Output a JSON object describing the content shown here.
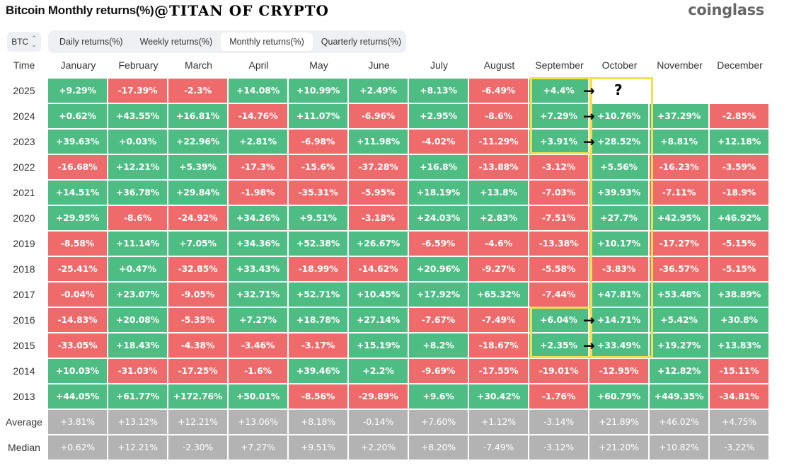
{
  "header": {
    "title": "Bitcoin Monthly returns(%)",
    "watermark": "@TITAN OF CRYPTO",
    "brand": "coinglass"
  },
  "controls": {
    "coin": "BTC",
    "tabs": [
      {
        "label": "Daily returns(%)",
        "active": false
      },
      {
        "label": "Weekly returns(%)",
        "active": false
      },
      {
        "label": "Monthly returns(%)",
        "active": true
      },
      {
        "label": "Quarterly returns(%)",
        "active": false
      }
    ]
  },
  "colors": {
    "positive": "#4dbd83",
    "negative": "#ef6a6a",
    "stat": "#b3b3b3",
    "highlight": "#f3e04a"
  },
  "table": {
    "time_header": "Time",
    "months": [
      "January",
      "February",
      "March",
      "April",
      "May",
      "June",
      "July",
      "August",
      "September",
      "October",
      "November",
      "December"
    ],
    "rows": [
      {
        "year": "2025",
        "values": [
          "+9.29%",
          "-17.39%",
          "-2.3%",
          "+14.08%",
          "+10.99%",
          "+2.49%",
          "+8.13%",
          "-6.49%",
          "+4.4%",
          "",
          "",
          ""
        ]
      },
      {
        "year": "2024",
        "values": [
          "+0.62%",
          "+43.55%",
          "+16.81%",
          "-14.76%",
          "+11.07%",
          "-6.96%",
          "+2.95%",
          "-8.6%",
          "+7.29%",
          "+10.76%",
          "+37.29%",
          "-2.85%"
        ]
      },
      {
        "year": "2023",
        "values": [
          "+39.63%",
          "+0.03%",
          "+22.96%",
          "+2.81%",
          "-6.98%",
          "+11.98%",
          "-4.02%",
          "-11.29%",
          "+3.91%",
          "+28.52%",
          "+8.81%",
          "+12.18%"
        ]
      },
      {
        "year": "2022",
        "values": [
          "-16.68%",
          "+12.21%",
          "+5.39%",
          "-17.3%",
          "-15.6%",
          "-37.28%",
          "+16.8%",
          "-13.88%",
          "-3.12%",
          "+5.56%",
          "-16.23%",
          "-3.59%"
        ]
      },
      {
        "year": "2021",
        "values": [
          "+14.51%",
          "+36.78%",
          "+29.84%",
          "-1.98%",
          "-35.31%",
          "-5.95%",
          "+18.19%",
          "+13.8%",
          "-7.03%",
          "+39.93%",
          "-7.11%",
          "-18.9%"
        ]
      },
      {
        "year": "2020",
        "values": [
          "+29.95%",
          "-8.6%",
          "-24.92%",
          "+34.26%",
          "+9.51%",
          "-3.18%",
          "+24.03%",
          "+2.83%",
          "-7.51%",
          "+27.7%",
          "+42.95%",
          "+46.92%"
        ]
      },
      {
        "year": "2019",
        "values": [
          "-8.58%",
          "+11.14%",
          "+7.05%",
          "+34.36%",
          "+52.38%",
          "+26.67%",
          "-6.59%",
          "-4.6%",
          "-13.38%",
          "+10.17%",
          "-17.27%",
          "-5.15%"
        ]
      },
      {
        "year": "2018",
        "values": [
          "-25.41%",
          "+0.47%",
          "-32.85%",
          "+33.43%",
          "-18.99%",
          "-14.62%",
          "+20.96%",
          "-9.27%",
          "-5.58%",
          "-3.83%",
          "-36.57%",
          "-5.15%"
        ]
      },
      {
        "year": "2017",
        "values": [
          "-0.04%",
          "+23.07%",
          "-9.05%",
          "+32.71%",
          "+52.71%",
          "+10.45%",
          "+17.92%",
          "+65.32%",
          "-7.44%",
          "+47.81%",
          "+53.48%",
          "+38.89%"
        ]
      },
      {
        "year": "2016",
        "values": [
          "-14.83%",
          "+20.08%",
          "-5.35%",
          "+7.27%",
          "+18.78%",
          "+27.14%",
          "-7.67%",
          "-7.49%",
          "+6.04%",
          "+14.71%",
          "+5.42%",
          "+30.8%"
        ]
      },
      {
        "year": "2015",
        "values": [
          "-33.05%",
          "+18.43%",
          "-4.38%",
          "-3.46%",
          "-3.17%",
          "+15.19%",
          "+8.2%",
          "-18.67%",
          "+2.35%",
          "+33.49%",
          "+19.27%",
          "+13.83%"
        ]
      },
      {
        "year": "2014",
        "values": [
          "+10.03%",
          "-31.03%",
          "-17.25%",
          "-1.6%",
          "+39.46%",
          "+2.2%",
          "-9.69%",
          "-17.55%",
          "-19.01%",
          "-12.95%",
          "+12.82%",
          "-15.11%"
        ]
      },
      {
        "year": "2013",
        "values": [
          "+44.05%",
          "+61.77%",
          "+172.76%",
          "+50.01%",
          "-8.56%",
          "-29.89%",
          "+9.6%",
          "+30.42%",
          "-1.76%",
          "+60.79%",
          "+449.35%",
          "-34.81%"
        ]
      }
    ],
    "stats": [
      {
        "label": "Average",
        "values": [
          "+3.81%",
          "+13.12%",
          "+12.21%",
          "+13.06%",
          "+8.18%",
          "-0.14%",
          "+7.60%",
          "+1.12%",
          "-3.14%",
          "+21.89%",
          "+46.02%",
          "+4.75%"
        ]
      },
      {
        "label": "Median",
        "values": [
          "+0.62%",
          "+12.21%",
          "-2.30%",
          "+7.27%",
          "+9.51%",
          "+2.20%",
          "+8.20%",
          "-7.49%",
          "-3.12%",
          "+21.20%",
          "+10.82%",
          "-3.22%"
        ]
      }
    ]
  },
  "annotations": {
    "arrow_glyph": "→",
    "question_mark": "?",
    "arrow_rows": [
      "2025",
      "2024",
      "2023",
      "2016",
      "2015"
    ]
  }
}
